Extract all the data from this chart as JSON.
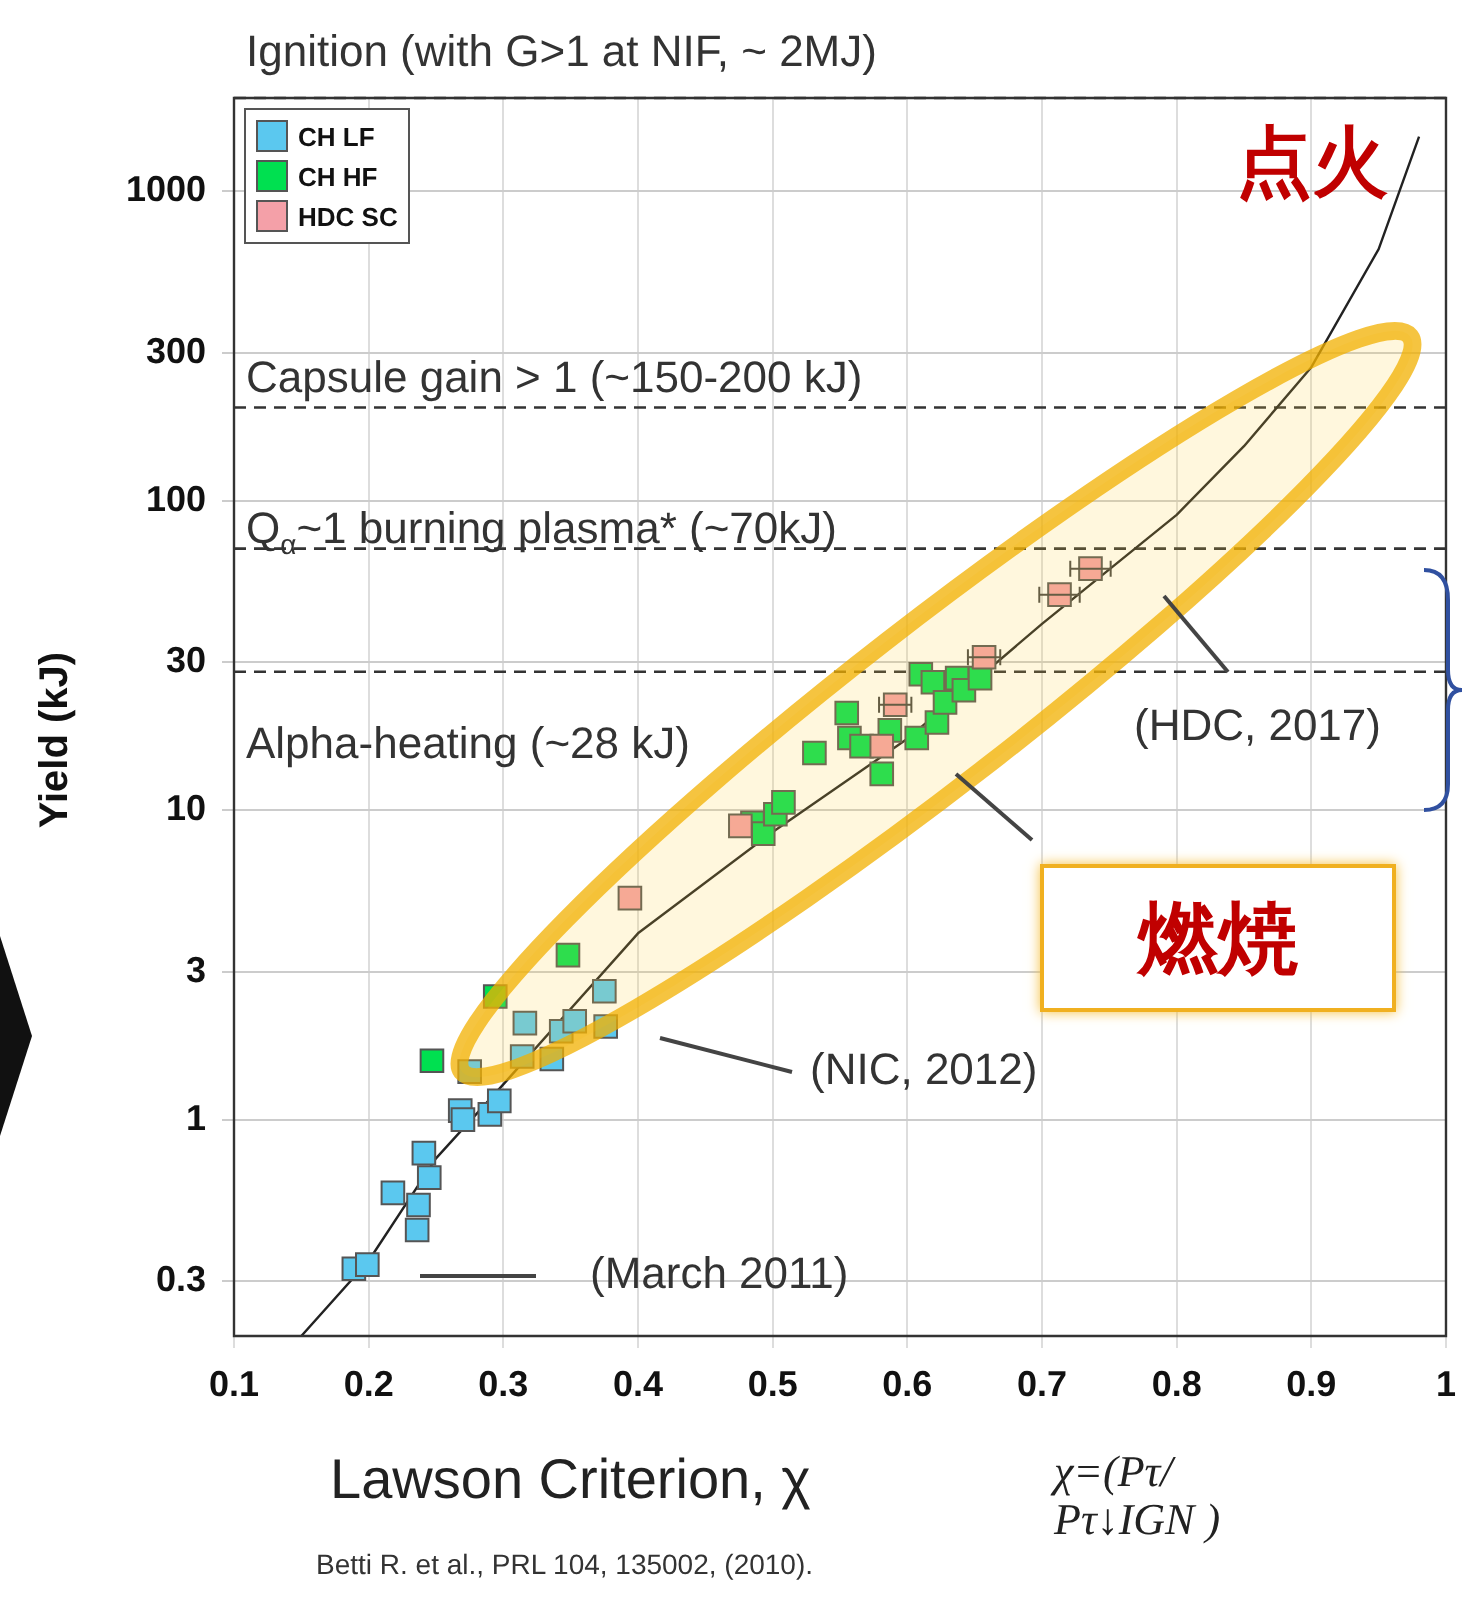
{
  "chart_data": {
    "type": "scatter",
    "xlabel": "Lawson Criterion, χ",
    "ylabel": "Yield (kJ)",
    "xlim": [
      0.1,
      1
    ],
    "xticks": [
      0.1,
      0.2,
      0.3,
      0.4,
      0.5,
      0.6,
      0.7,
      0.8,
      0.9,
      1
    ],
    "ylim": [
      0.2,
      2000
    ],
    "yticks": [
      0.3,
      1,
      3,
      10,
      30,
      100,
      300,
      1000
    ],
    "log": "y",
    "grid": true,
    "legend": "top left",
    "marker": "square",
    "series": [
      {
        "name": "CH LF",
        "color": "#5bc8ef",
        "x": [
          0.189,
          0.199,
          0.218,
          0.236,
          0.237,
          0.245,
          0.241,
          0.268,
          0.27,
          0.29,
          0.297,
          0.275,
          0.375,
          0.376,
          0.343,
          0.316,
          0.314,
          0.336,
          0.353
        ],
        "values": [
          0.33,
          0.34,
          0.58,
          0.44,
          0.53,
          0.65,
          0.78,
          1.07,
          1.0,
          1.04,
          1.15,
          1.43,
          2.6,
          2.0,
          1.93,
          2.05,
          1.6,
          1.57,
          2.08
        ]
      },
      {
        "name": "CH HF",
        "color": "#00e050",
        "x": [
          0.247,
          0.294,
          0.348,
          0.485,
          0.493,
          0.502,
          0.508,
          0.531,
          0.555,
          0.557,
          0.566,
          0.581,
          0.587,
          0.607,
          0.61,
          0.619,
          0.622,
          0.628,
          0.637,
          0.642,
          0.654
        ],
        "values": [
          1.55,
          2.5,
          3.4,
          9.1,
          8.4,
          9.7,
          10.6,
          15.3,
          20.6,
          17.1,
          16.1,
          13.1,
          18.1,
          17.1,
          27.5,
          25.9,
          19.2,
          22.3,
          26.7,
          24.4,
          26.7
        ]
      },
      {
        "name": "HDC SC",
        "color": "#f4a0a8",
        "x": [
          0.394,
          0.476,
          0.581,
          0.591,
          0.657,
          0.713,
          0.736
        ],
        "values": [
          5.2,
          8.9,
          16.1,
          21.9,
          31.2,
          49.7,
          60.3
        ],
        "xerrors": [
          null,
          null,
          null,
          0.012,
          0.012,
          0.015,
          0.015
        ]
      },
      {
        "type": "line",
        "marker": "none",
        "color": "#222222",
        "x": [
          0.15,
          0.2,
          0.25,
          0.3,
          0.4,
          0.5,
          0.6,
          0.7,
          0.8,
          0.85,
          0.9,
          0.95,
          0.98
        ],
        "values": [
          0.2,
          0.35,
          0.75,
          1.3,
          4,
          8.5,
          17,
          40,
          90,
          150,
          270,
          650,
          1500
        ]
      }
    ],
    "ref_lines": [
      {
        "axis": "y",
        "value": 2000,
        "label": "Ignition (with G>1 at NIF, ~ 2MJ)",
        "line_style": "dashed",
        "color": "#333333"
      },
      {
        "axis": "y",
        "value": 200,
        "label": "Capsule gain > 1 (~150-200 kJ)",
        "line_style": "dashed",
        "color": "#333333"
      },
      {
        "axis": "y",
        "value": 70,
        "label": "Q$_{α}$~1 burning plasma* (~70kJ)",
        "line_style": "dashed",
        "color": "#333333"
      },
      {
        "axis": "y",
        "value": 28,
        "label": "Alpha-heating (~28 kJ)",
        "line_style": "dashed",
        "color": "#333333"
      }
    ],
    "annotations": [
      "点火",
      "燃焼",
      "(HDC, 2017)",
      "(NIC, 2012)",
      "(March 2011)",
      "χ=(Pτ/\nPτ↓IGN )",
      "Betti R. et al., PRL 104, 135002, (2010)."
    ]
  }
}
